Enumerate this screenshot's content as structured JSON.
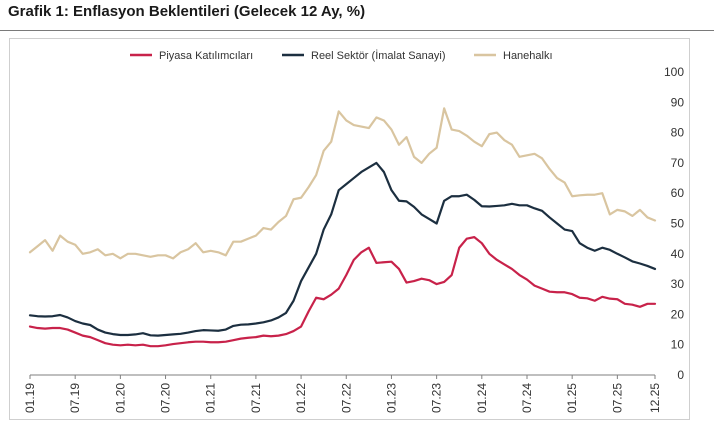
{
  "title": "Grafik 1: Enflasyon Beklentileri (Gelecek 12 Ay, %)",
  "chart_data": {
    "type": "line",
    "title": "Grafik 1: Enflasyon Beklentileri (Gelecek 12 Ay, %)",
    "xlabel": "",
    "ylabel": "",
    "ylim": [
      0,
      100
    ],
    "yticks": [
      0,
      10,
      20,
      30,
      40,
      50,
      60,
      70,
      80,
      90,
      100
    ],
    "y_axis_position": "right",
    "grid": false,
    "legend_position": "top",
    "x_start": "2019-01",
    "x_end": "2025-12",
    "x_tick_labels": [
      "01.19",
      "07.19",
      "01.20",
      "07.20",
      "01.21",
      "07.21",
      "01.22",
      "07.22",
      "01.23",
      "07.23",
      "01.24",
      "07.24",
      "01.25",
      "07.25",
      "12.25"
    ],
    "series": [
      {
        "name": "Piyasa Katılımcıları",
        "color": "#c8224a",
        "values": [
          16,
          15.5,
          15.3,
          15.5,
          15.5,
          15,
          14,
          13,
          12.5,
          11.5,
          10.5,
          10,
          9.8,
          10,
          9.8,
          10,
          9.5,
          9.5,
          9.8,
          10.2,
          10.5,
          10.8,
          11,
          11,
          10.8,
          10.8,
          11,
          11.5,
          12,
          12.3,
          12.5,
          13,
          12.8,
          13,
          13.5,
          14.5,
          16,
          21,
          25.5,
          25,
          26.5,
          28.5,
          33,
          38,
          40.5,
          42,
          37,
          37.2,
          37.4,
          35,
          30.5,
          31,
          31.8,
          31.3,
          30,
          30.7,
          33,
          42,
          45,
          45.5,
          43.5,
          40,
          38,
          36.5,
          35,
          33,
          31.5,
          29.5,
          28.5,
          27.5,
          27.3,
          27.3,
          26.7,
          25.5,
          25.3,
          24.5,
          25.8,
          25.2,
          25,
          23.5,
          23.2,
          22.5,
          23.5,
          23.5
        ]
      },
      {
        "name": "Reel Sektör (İmalat Sanayi)",
        "color": "#1c2f40",
        "values": [
          19.7,
          19.4,
          19.3,
          19.4,
          19.8,
          19,
          17.8,
          17,
          16.5,
          15,
          14,
          13.5,
          13.2,
          13.2,
          13.4,
          13.8,
          13.1,
          13,
          13.2,
          13.4,
          13.6,
          14,
          14.5,
          14.8,
          14.7,
          14.6,
          15,
          16.2,
          16.6,
          16.7,
          17,
          17.4,
          18,
          19,
          20.5,
          24.5,
          31,
          35.5,
          40,
          48,
          53,
          61,
          63,
          65,
          67,
          68.5,
          70,
          67,
          61,
          57.5,
          57.3,
          55.5,
          53,
          51.5,
          50,
          57.5,
          59,
          59,
          59.5,
          57.8,
          55.7,
          55.6,
          55.8,
          56,
          56.5,
          56,
          56,
          55,
          54.2,
          52,
          50,
          48,
          47.5,
          43.5,
          42,
          41,
          42,
          41.3,
          40,
          38.8,
          37.5,
          36.8,
          36,
          35
        ]
      },
      {
        "name": "Hanehalkı",
        "color": "#d9c5a0",
        "values": [
          40.5,
          42.5,
          44.5,
          41,
          46,
          44,
          43,
          40,
          40.5,
          41.5,
          39.5,
          40,
          38.5,
          40,
          40,
          39.5,
          39,
          39.5,
          39.5,
          38.5,
          40.5,
          41.5,
          43.5,
          40.5,
          41,
          40.5,
          39.5,
          44,
          44,
          45,
          46,
          48.5,
          48,
          50.5,
          52.5,
          58,
          58.5,
          62,
          66,
          74,
          77,
          87,
          84,
          82.5,
          82,
          81.5,
          85,
          84,
          81,
          76,
          78.5,
          72,
          70,
          73,
          75,
          88,
          81,
          80.5,
          79,
          77,
          75.5,
          79.5,
          80,
          77.5,
          76,
          72,
          72.5,
          73,
          71.5,
          68,
          65,
          63.5,
          59,
          59.3,
          59.5,
          59.5,
          60,
          53,
          54.5,
          54,
          52.5,
          54.5,
          52,
          51
        ]
      }
    ]
  }
}
